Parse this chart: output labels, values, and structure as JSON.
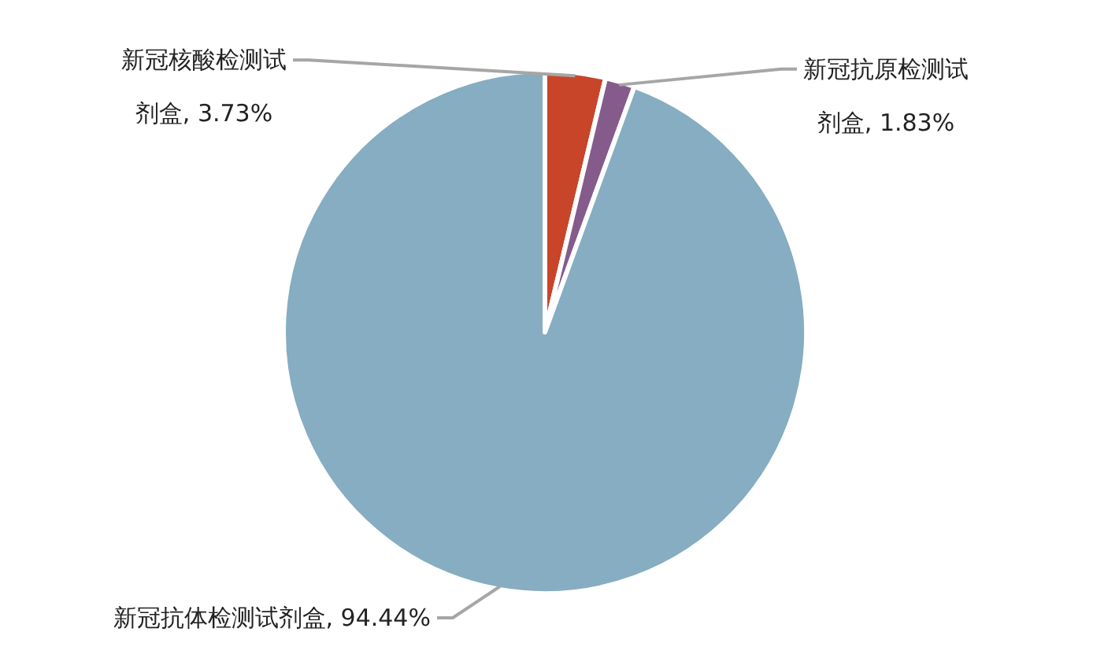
{
  "chart_data": {
    "type": "pie",
    "categories": [
      "新冠核酸检测试剂盒",
      "新冠抗原检测试剂盒",
      "新冠抗体检测试剂盒"
    ],
    "values": [
      3.73,
      1.83,
      94.44
    ],
    "colors": [
      "#c8452a",
      "#855b8c",
      "#86adc1"
    ],
    "value_labels": [
      ", 3.73%",
      ", 1.83%",
      ", 94.44%"
    ]
  }
}
